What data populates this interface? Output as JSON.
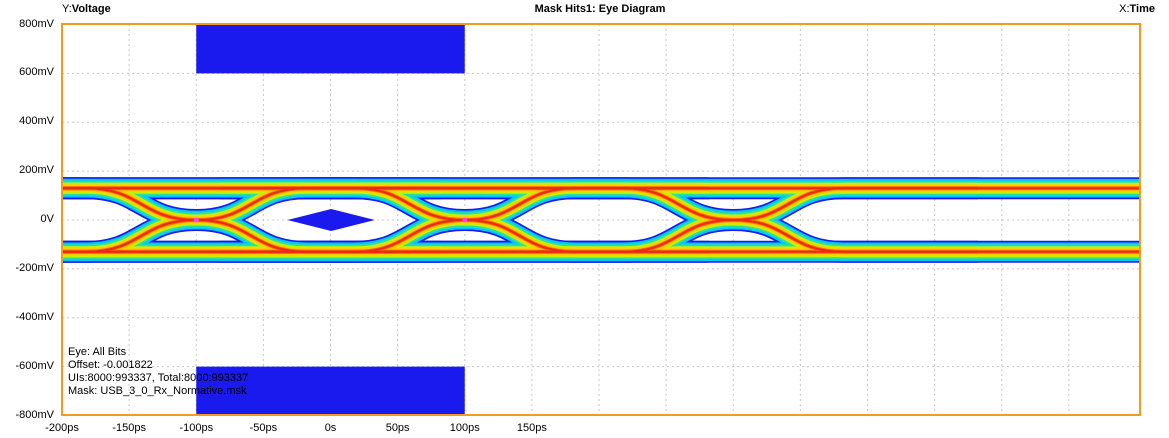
{
  "header": {
    "y_prefix": "Y:",
    "y_label": "Voltage",
    "title": "Mask Hits1: Eye Diagram",
    "x_prefix": "X:",
    "x_label": "Time"
  },
  "info": {
    "eye": "Eye: All Bits",
    "offset": "Offset: -0.001822",
    "uis": "UIs:8000:993337, Total:8000:993337",
    "mask": "Mask: USB_3_0_Rx_Normative.msk"
  },
  "colors": {
    "frame": "#f29b1d",
    "mask": "#1a1aee",
    "grid": "#c8c8c8",
    "eye_gradient": [
      "#1a1aee",
      "#00c8ff",
      "#2de0a0",
      "#c8f000",
      "#ffcc00",
      "#ff6a00",
      "#e82a1a"
    ],
    "crossing_marker": "#ff40ff"
  },
  "chart_data": {
    "type": "heatmap",
    "title": "Mask Hits1: Eye Diagram",
    "xlabel": "Time",
    "ylabel": "Voltage",
    "x_unit": "ps",
    "y_unit": "mV",
    "xlim": [
      -200,
      200
    ],
    "ylim": [
      -800,
      800
    ],
    "x_ticks": [
      {
        "value": -200,
        "label": "-200ps"
      },
      {
        "value": -150,
        "label": "-150ps"
      },
      {
        "value": -100,
        "label": "-100ps"
      },
      {
        "value": -50,
        "label": "-50ps"
      },
      {
        "value": 0,
        "label": "0s"
      },
      {
        "value": 50,
        "label": "50ps"
      },
      {
        "value": 100,
        "label": "100ps"
      },
      {
        "value": 150,
        "label": "150ps"
      }
    ],
    "y_ticks": [
      {
        "value": 800,
        "label": "800mV"
      },
      {
        "value": 600,
        "label": "600mV"
      },
      {
        "value": 400,
        "label": "400mV"
      },
      {
        "value": 200,
        "label": "200mV"
      },
      {
        "value": 0,
        "label": "0V"
      },
      {
        "value": -200,
        "label": "-200mV"
      },
      {
        "value": -400,
        "label": "-400mV"
      },
      {
        "value": -600,
        "label": "-600mV"
      },
      {
        "value": -800,
        "label": "-800mV"
      }
    ],
    "grid": true,
    "mask": {
      "top_region": {
        "x": [
          -100,
          100
        ],
        "y": [
          600,
          800
        ]
      },
      "bottom_region": {
        "x": [
          -100,
          100
        ],
        "y": [
          -800,
          -600
        ]
      },
      "center_diamond": {
        "x": [
          -32,
          33
        ],
        "y": [
          -45,
          45
        ]
      }
    },
    "eye": {
      "crossing_times": [
        -100,
        100
      ],
      "crossing_level": 0,
      "high_level": 130,
      "low_level": -130,
      "band_half_widths": [
        45,
        38,
        30,
        22,
        15,
        8
      ]
    }
  }
}
